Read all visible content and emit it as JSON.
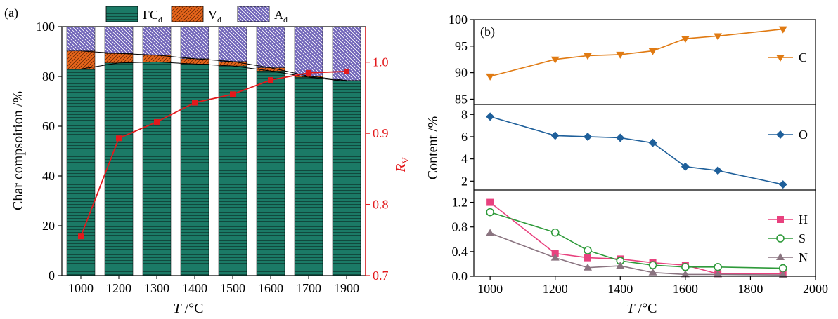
{
  "colors": {
    "fc": "#1b7a66",
    "vol": "#e8661c",
    "ash": "#6f63b8",
    "rv": "#e3191c",
    "C": "#e07a12",
    "O": "#1e5f9a",
    "H": "#e8417e",
    "S": "#2e9a3a",
    "N": "#8a7480"
  },
  "chart_data": [
    {
      "type": "bar",
      "panel_label": "(a)",
      "categories": [
        "1000",
        "1200",
        "1300",
        "1400",
        "1500",
        "1600",
        "1700",
        "1900"
      ],
      "series": [
        {
          "name": "FC",
          "sub": "d",
          "values": [
            83.0,
            85.4,
            85.8,
            85.0,
            84.2,
            82.2,
            79.7,
            78.1
          ]
        },
        {
          "name": "V",
          "sub": "d",
          "values": [
            7.2,
            3.8,
            2.7,
            2.1,
            1.8,
            1.3,
            0.4,
            0.3
          ]
        },
        {
          "name": "A",
          "sub": "d",
          "values": [
            9.8,
            10.8,
            11.5,
            12.9,
            14.0,
            16.5,
            19.9,
            21.6
          ]
        }
      ],
      "stacked": true,
      "ylim": [
        0,
        100
      ],
      "yticks": [
        "0",
        "20",
        "40",
        "60",
        "80",
        "100"
      ],
      "ylabel": "Char compsoition /%",
      "xlabel_italic": "T",
      "xlabel_rest": " /°C",
      "secondary_axis": {
        "name": "R",
        "sub": "V",
        "ylim": [
          0.7,
          1.05
        ],
        "yticks": [
          "0.7",
          "0.8",
          "0.9",
          "1.0"
        ],
        "values": [
          0.755,
          0.893,
          0.916,
          0.943,
          0.955,
          0.975,
          0.985,
          0.987
        ]
      }
    },
    {
      "type": "line",
      "panel_label": "(b)",
      "shared_ylabel": "Content /%",
      "xlabel_italic": "T",
      "xlabel_rest": " /°C",
      "xlim": [
        950,
        2000
      ],
      "xticks": [
        "1000",
        "1200",
        "1400",
        "1600",
        "1800",
        "2000"
      ],
      "panels": [
        {
          "ylim": [
            84,
            100
          ],
          "yticks": [
            "85",
            "90",
            "95",
            "100"
          ],
          "series": [
            {
              "name": "C",
              "marker": "triangle-down",
              "x": [
                1000,
                1200,
                1300,
                1400,
                1500,
                1600,
                1700,
                1900
              ],
              "y": [
                89.3,
                92.5,
                93.2,
                93.4,
                94.1,
                96.4,
                96.9,
                98.2
              ]
            }
          ]
        },
        {
          "ylim": [
            1.2,
            8.9
          ],
          "yticks": [
            "2",
            "4",
            "6",
            "8"
          ],
          "series": [
            {
              "name": "O",
              "marker": "diamond",
              "x": [
                1000,
                1200,
                1300,
                1400,
                1500,
                1600,
                1700,
                1900
              ],
              "y": [
                7.8,
                6.1,
                6.0,
                5.9,
                5.45,
                3.3,
                2.95,
                1.7
              ]
            }
          ]
        },
        {
          "ylim": [
            0,
            1.4
          ],
          "yticks": [
            "0.0",
            "0.4",
            "0.8",
            "1.2"
          ],
          "series": [
            {
              "name": "H",
              "marker": "square",
              "x": [
                1000,
                1200,
                1300,
                1400,
                1500,
                1600,
                1700,
                1900
              ],
              "y": [
                1.2,
                0.37,
                0.3,
                0.28,
                0.22,
                0.18,
                0.04,
                0.04
              ]
            },
            {
              "name": "S",
              "marker": "circle-open",
              "x": [
                1000,
                1200,
                1300,
                1400,
                1500,
                1600,
                1700,
                1900
              ],
              "y": [
                1.04,
                0.71,
                0.42,
                0.25,
                0.18,
                0.15,
                0.15,
                0.13
              ]
            },
            {
              "name": "N",
              "marker": "triangle-up",
              "x": [
                1000,
                1200,
                1300,
                1400,
                1500,
                1600,
                1700,
                1900
              ],
              "y": [
                0.7,
                0.3,
                0.14,
                0.17,
                0.06,
                0.03,
                0.03,
                0.02
              ]
            }
          ]
        }
      ]
    }
  ]
}
